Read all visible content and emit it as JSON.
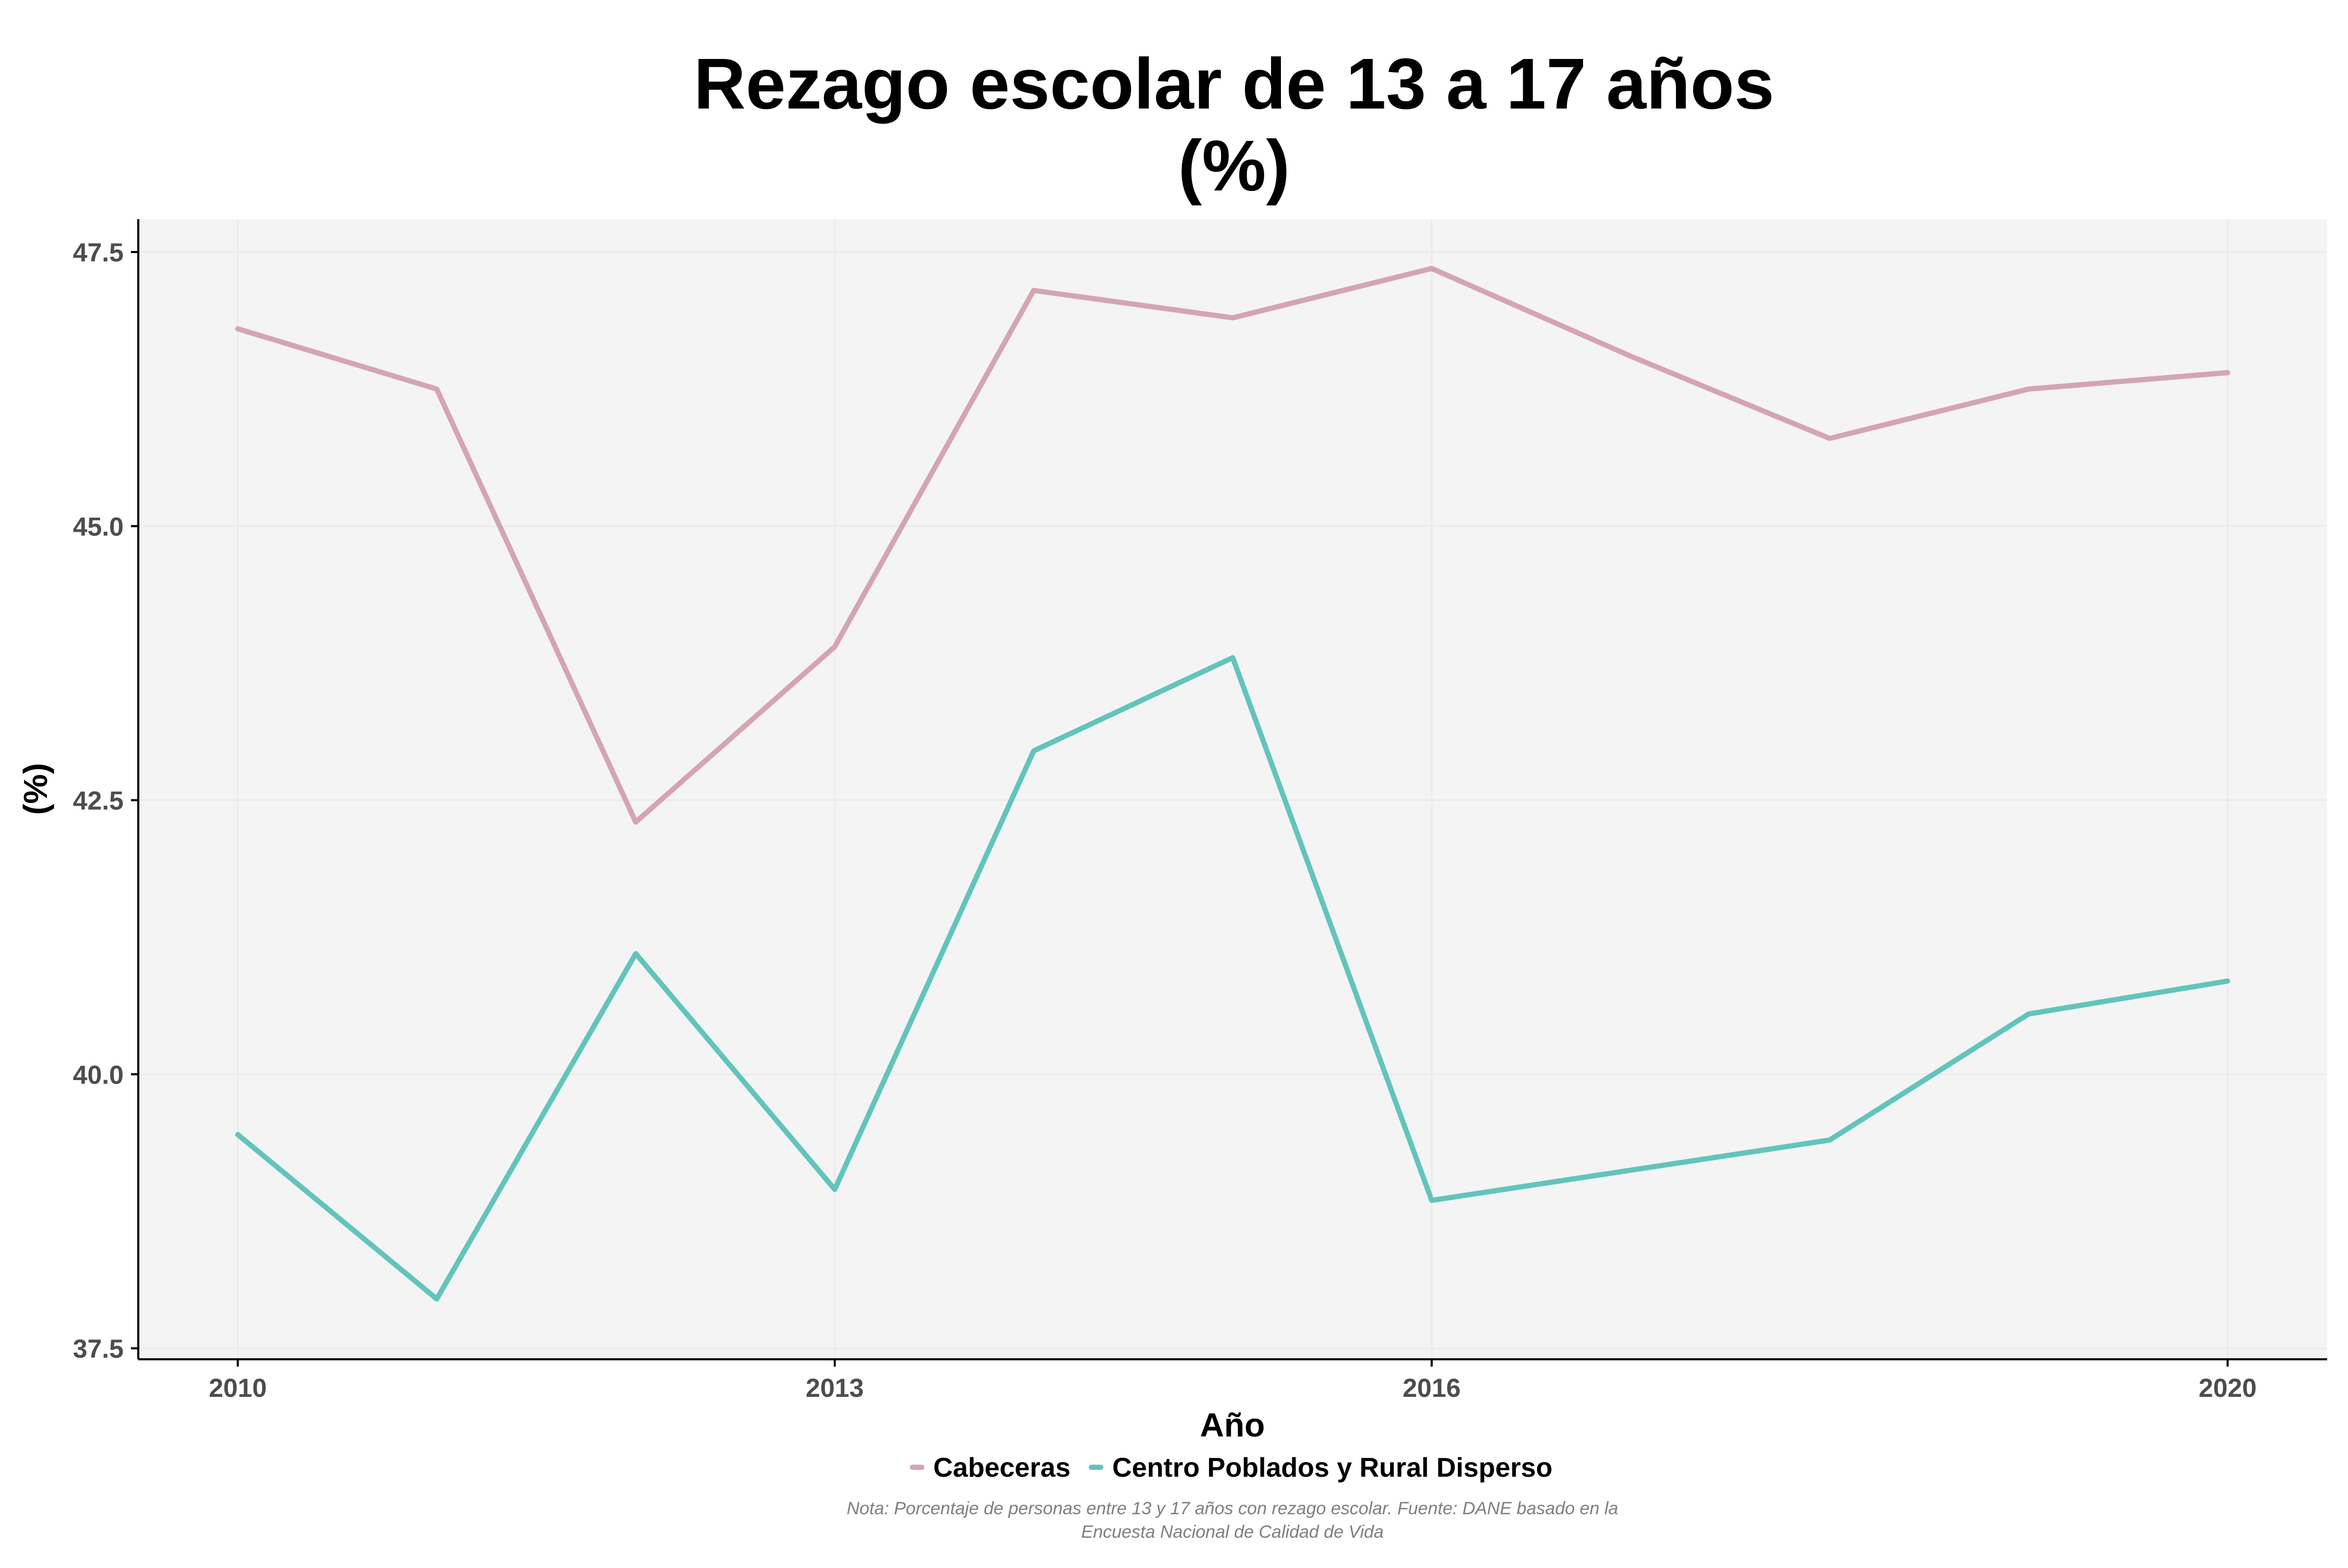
{
  "chart_data": {
    "type": "line",
    "title": "Rezago escolar de 13 a 17 años",
    "subtitle": "(%)",
    "xlabel": "Año",
    "ylabel": "(%)",
    "xlim": [
      2009.5,
      2020.5
    ],
    "ylim": [
      37.4,
      47.8
    ],
    "x_ticks": [
      2010,
      2013,
      2016,
      2020
    ],
    "y_ticks": [
      37.5,
      40.0,
      42.5,
      45.0,
      47.5
    ],
    "y_tick_labels": [
      "37.5",
      "40.0",
      "42.5",
      "45.0",
      "47.5"
    ],
    "grid": true,
    "legend_position": "bottom",
    "series": [
      {
        "name": "Cabeceras",
        "color": "#d4a5b1",
        "x": [
          2010,
          2011,
          2012,
          2013,
          2014,
          2015,
          2016,
          2017,
          2018,
          2019,
          2020
        ],
        "y": [
          46.8,
          46.25,
          42.3,
          43.9,
          47.15,
          46.9,
          47.35,
          46.55,
          45.8,
          46.25,
          46.4
        ]
      },
      {
        "name": "Centro Poblados y Rural Disperso",
        "color": "#62c4bc",
        "x": [
          2010,
          2011,
          2012,
          2013,
          2014,
          2015,
          2016,
          2018,
          2019,
          2020
        ],
        "y": [
          39.45,
          37.95,
          41.1,
          38.95,
          42.95,
          43.8,
          38.85,
          39.4,
          40.55,
          40.85
        ]
      }
    ],
    "note_line1": "Nota: Porcentaje de personas entre 13 y 17 años con rezago escolar. Fuente: DANE basado en la",
    "note_line2": "Encuesta Nacional de Calidad de Vida"
  },
  "colors": {
    "panel_background": "#f4f4f4",
    "grid": "#ebebeb",
    "axis": "#000000",
    "tick_label": "#4d4d4d",
    "note": "#7f7f7f"
  }
}
